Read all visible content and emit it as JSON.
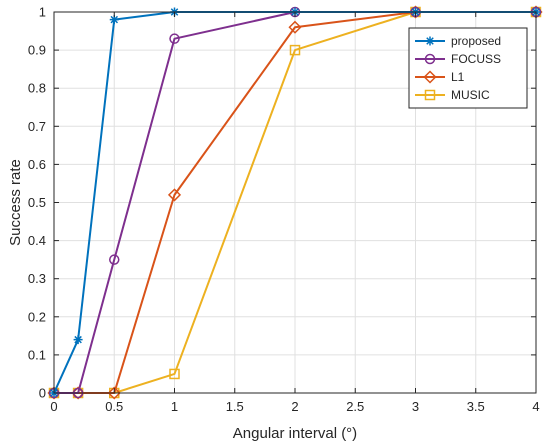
{
  "chart_data": {
    "type": "line",
    "title": "",
    "xlabel": "Angular interval (°)",
    "ylabel": "Success rate",
    "xlim": [
      0,
      4
    ],
    "ylim": [
      0,
      1
    ],
    "grid": true,
    "legend_position": "top-right",
    "x_ticks": [
      "0",
      "0.5",
      "1",
      "1.5",
      "2",
      "2.5",
      "3",
      "3.5",
      "4"
    ],
    "y_ticks": [
      "0",
      "0.1",
      "0.2",
      "0.3",
      "0.4",
      "0.5",
      "0.6",
      "0.7",
      "0.8",
      "0.9",
      "1"
    ],
    "series": [
      {
        "name": "proposed",
        "color": "#0072BD",
        "marker": "asterisk",
        "x": [
          0,
          0.2,
          0.5,
          1,
          2,
          3,
          4
        ],
        "y": [
          0,
          0.14,
          0.98,
          1,
          1,
          1,
          1
        ]
      },
      {
        "name": "FOCUSS",
        "color": "#7E2F8E",
        "marker": "circle",
        "x": [
          0,
          0.2,
          0.5,
          1,
          2,
          3,
          4
        ],
        "y": [
          0,
          0,
          0.35,
          0.93,
          1,
          1,
          1
        ]
      },
      {
        "name": "L1",
        "color": "#D95319",
        "marker": "diamond",
        "x": [
          0,
          0.2,
          0.5,
          1,
          2,
          3,
          4
        ],
        "y": [
          0,
          0,
          0,
          0.52,
          0.96,
          1,
          1
        ]
      },
      {
        "name": "MUSIC",
        "color": "#EDB120",
        "marker": "square",
        "x": [
          0,
          0.2,
          0.5,
          1,
          2,
          3,
          4
        ],
        "y": [
          0,
          0,
          0,
          0.05,
          0.9,
          1,
          1
        ]
      }
    ]
  }
}
